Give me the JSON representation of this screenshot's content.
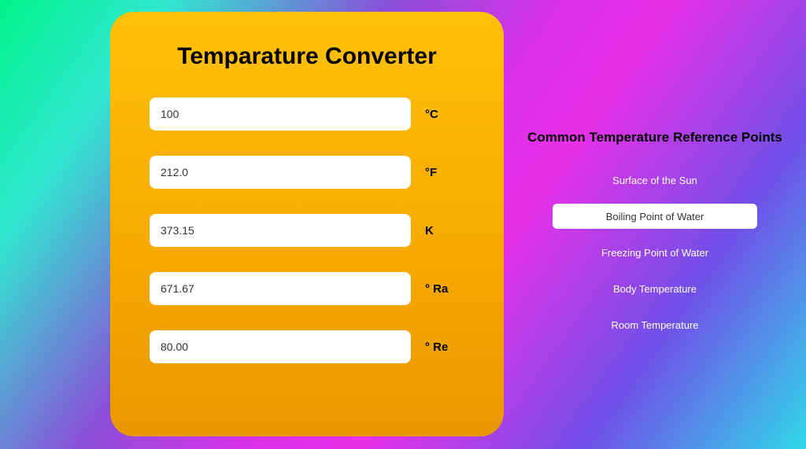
{
  "converter": {
    "title": "Temparature Converter",
    "fields": [
      {
        "value": "100",
        "unit": "°C"
      },
      {
        "value": "212.0",
        "unit": "°F"
      },
      {
        "value": "373.15",
        "unit": "K"
      },
      {
        "value": "671.67",
        "unit": "° Ra"
      },
      {
        "value": "80.00",
        "unit": "° Re"
      }
    ]
  },
  "references": {
    "heading": "Common Temperature Reference Points",
    "items": [
      {
        "label": "Surface of the Sun",
        "selected": false
      },
      {
        "label": "Boiling Point of Water",
        "selected": true
      },
      {
        "label": "Freezing Point of Water",
        "selected": false
      },
      {
        "label": "Body Temperature",
        "selected": false
      },
      {
        "label": "Room Temperature",
        "selected": false
      }
    ]
  },
  "colors": {
    "panel_gradient_top": "#ffc107",
    "panel_gradient_bottom": "#e89800",
    "bg_gradient": [
      "#00f28a",
      "#30e8d0",
      "#8a4fd8",
      "#d830e8",
      "#e830e8",
      "#7050e8",
      "#30d8e8"
    ],
    "input_bg": "#ffffff",
    "text_dark": "#000000",
    "text_light": "#ffffff"
  }
}
